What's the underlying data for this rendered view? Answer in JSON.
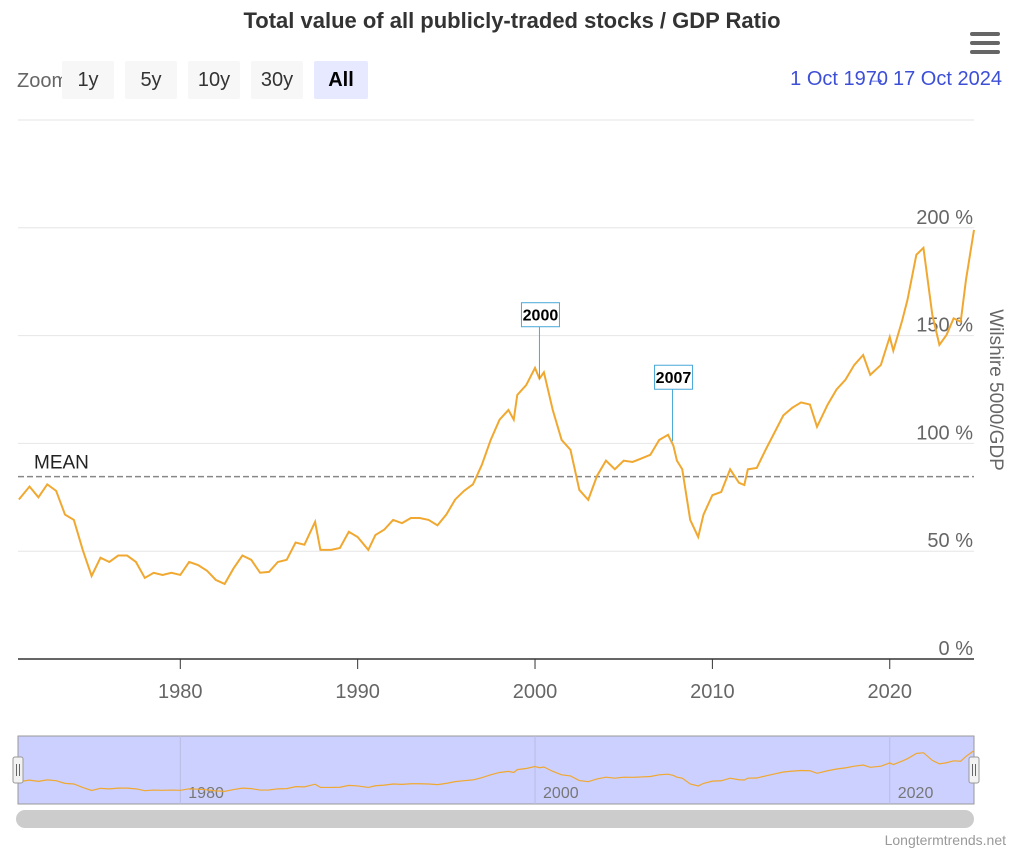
{
  "chart_data": {
    "type": "line",
    "title": "Total value of all publicly-traded stocks / GDP Ratio",
    "y_axis_title": "Wilshire 5000/GDP",
    "color": "#f0a830",
    "x": [
      1970.9,
      1971.5,
      1972,
      1972.5,
      1973,
      1973.5,
      1974,
      1974.5,
      1975,
      1975.5,
      1976,
      1976.5,
      1977,
      1977.5,
      1978,
      1978.5,
      1979,
      1979.5,
      1980,
      1980.5,
      1981,
      1981.5,
      1982,
      1982.5,
      1983,
      1983.5,
      1984,
      1984.5,
      1985,
      1985.5,
      1986,
      1986.5,
      1987,
      1987.6,
      1987.9,
      1988.5,
      1989,
      1989.5,
      1990,
      1990.6,
      1991,
      1991.5,
      1992,
      1992.5,
      1993,
      1993.5,
      1994,
      1994.5,
      1995,
      1995.5,
      1996,
      1996.5,
      1997,
      1997.5,
      1998,
      1998.5,
      1998.8,
      1999,
      1999.5,
      2000,
      2000.25,
      2000.5,
      2001,
      2001.5,
      2002,
      2002.5,
      2003,
      2003.5,
      2004,
      2004.5,
      2005,
      2005.5,
      2006,
      2006.5,
      2007,
      2007.5,
      2007.8,
      2008,
      2008.3,
      2008.75,
      2009.2,
      2009.5,
      2010,
      2010.5,
      2011,
      2011.5,
      2011.8,
      2012,
      2012.5,
      2013,
      2013.5,
      2014,
      2014.5,
      2015,
      2015.5,
      2015.9,
      2016.5,
      2017,
      2017.5,
      2018,
      2018.5,
      2018.9,
      2019.5,
      2020,
      2020.2,
      2020.7,
      2021,
      2021.5,
      2021.9,
      2022.4,
      2022.8,
      2023.2,
      2023.6,
      2024,
      2024.3,
      2024.75
    ],
    "values": [
      74,
      80,
      75,
      81,
      78,
      67,
      64.5,
      50.6,
      38.5,
      47,
      45,
      48,
      48,
      45,
      37.6,
      40,
      39,
      40,
      39,
      45,
      43.6,
      41,
      36.7,
      34.8,
      42,
      48,
      46,
      40,
      40.4,
      45,
      46,
      54,
      53,
      63.6,
      50.6,
      50.6,
      51.5,
      59,
      56.6,
      50.6,
      57.5,
      60,
      64.5,
      63,
      65.4,
      65.4,
      64.5,
      62,
      67,
      74,
      78,
      81,
      90,
      101.6,
      111,
      115.5,
      111,
      122.5,
      127,
      135,
      130,
      133,
      115.5,
      101.6,
      97,
      78.4,
      73.8,
      85,
      92,
      88,
      92,
      91.4,
      93,
      94.7,
      101.6,
      104,
      99,
      92,
      88,
      64.5,
      56.6,
      67,
      76,
      77.5,
      88,
      81.7,
      80.7,
      88,
      88.6,
      97,
      105,
      113,
      116.5,
      119,
      118,
      107.7,
      118,
      125,
      129.5,
      136.4,
      141,
      131.8,
      136.4,
      149.4,
      143,
      157,
      166.6,
      187.5,
      190.7,
      159.6,
      145.7,
      150.3,
      158,
      156.4,
      176,
      199
    ],
    "xlim": [
      1970.85,
      2024.75
    ],
    "xticks": [
      1980,
      1990,
      2000,
      2010,
      2020
    ],
    "ylim": [
      0,
      250
    ],
    "yticks": [
      {
        "value": 0,
        "label": "0 %"
      },
      {
        "value": 50,
        "label": "50 %"
      },
      {
        "value": 100,
        "label": "100 %"
      },
      {
        "value": 150,
        "label": "150 %"
      },
      {
        "value": 200,
        "label": "200 %"
      }
    ],
    "grid": true,
    "mean": {
      "label": "MEAN",
      "value": 84.6
    },
    "flags": [
      {
        "label": "2000",
        "x": 2000.25,
        "value": 130
      },
      {
        "label": "2007",
        "x": 2007.75,
        "value": 101
      }
    ],
    "navigator": {
      "xticks": [
        1980,
        2000,
        2020
      ]
    },
    "range_selector": {
      "zoom_label": "Zoom",
      "buttons": [
        "1y",
        "5y",
        "10y",
        "30y",
        "All"
      ],
      "selected": 4,
      "from": "1 Oct 1970",
      "to": "17 Oct 2024"
    },
    "credits": "Longtermtrends.net"
  }
}
